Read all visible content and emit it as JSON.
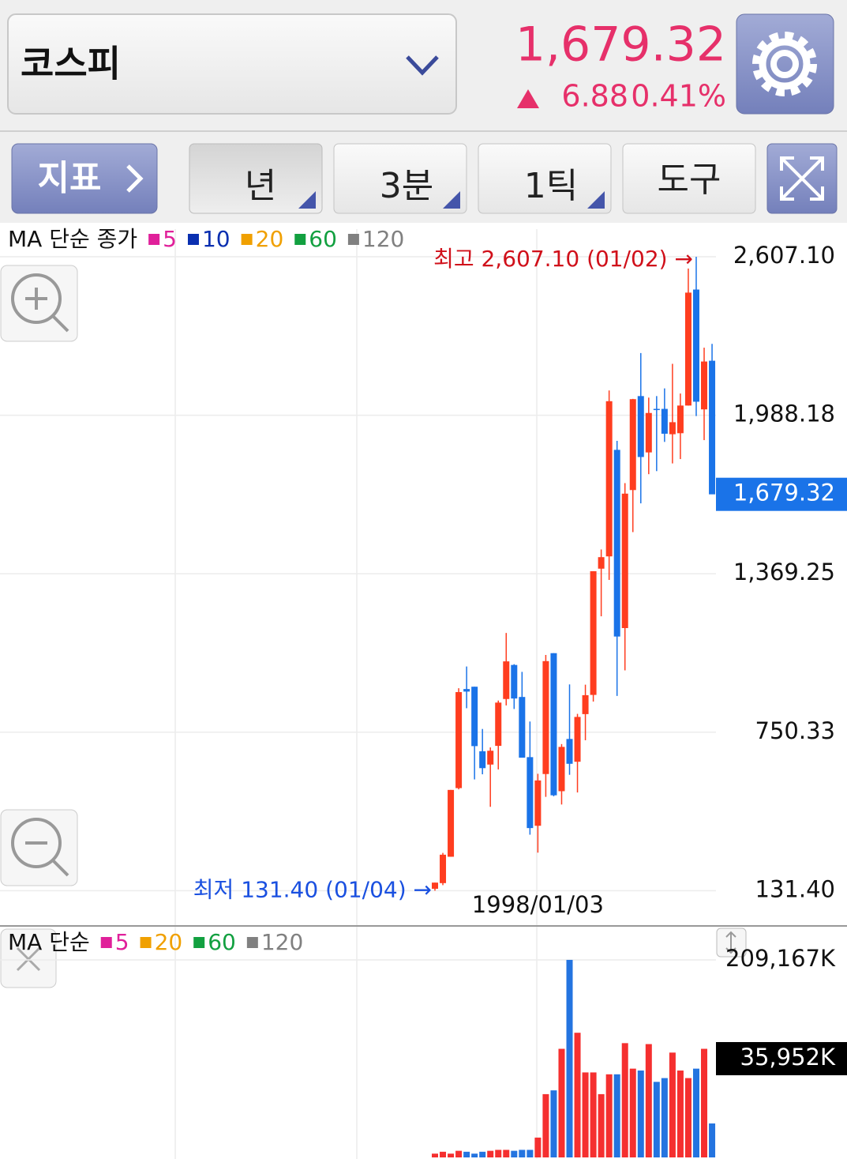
{
  "header": {
    "index_name": "코스피",
    "price": "1,679.32",
    "change": "6.88",
    "change_rate": "0.41%"
  },
  "toolbar": {
    "indicator": "지표",
    "period": "년",
    "minute": "3분",
    "tick": "1틱",
    "tools": "도구"
  },
  "chart_data": [
    {
      "type": "candlestick",
      "legend_title": "MA 단순 종가",
      "ma_legend": [
        {
          "name": "5",
          "color": "#e0209a"
        },
        {
          "name": "10",
          "color": "#0a2fb0"
        },
        {
          "name": "20",
          "color": "#f0a000"
        },
        {
          "name": "60",
          "color": "#12a040"
        },
        {
          "name": "120",
          "color": "#808080"
        }
      ],
      "categories": [
        null,
        null,
        null,
        null,
        null,
        null,
        null,
        null,
        null,
        null,
        null,
        null,
        null,
        "1998/01/03",
        null,
        null,
        null,
        null,
        null,
        null,
        null,
        null,
        null,
        null,
        null,
        null,
        null,
        null,
        null,
        null,
        null,
        null,
        null,
        null,
        null,
        null
      ],
      "open": [
        139,
        161,
        264,
        532,
        919,
        928,
        676,
        624,
        697,
        880,
        1013,
        888,
        653,
        385,
        587,
        1059,
        520,
        724,
        635,
        821,
        896,
        1389,
        1437,
        1853,
        1157,
        1696,
        2063,
        1843,
        2013,
        2013,
        1914,
        1918,
        2026,
        2479,
        2011,
        2201
      ],
      "high": [
        163,
        279,
        525,
        922,
        1007,
        928,
        763,
        691,
        874,
        1138,
        1016,
        986,
        792,
        588,
        1052,
        1059,
        704,
        937,
        822,
        936,
        1379,
        1464,
        2085,
        1888,
        1723,
        2052,
        2231,
        2057,
        2063,
        2093,
        2189,
        2073,
        2561,
        2607.1,
        2252,
        2267
      ],
      "low": [
        131.4,
        153,
        264,
        527,
        844,
        566,
        586,
        459,
        605,
        855,
        841,
        651,
        350,
        280,
        498,
        500,
        468,
        584,
        515,
        719,
        870,
        1203,
        1345,
        892,
        992,
        1532,
        1644,
        1758,
        1770,
        1884,
        1800,
        1817,
        2026,
        1985,
        1891,
        1680
      ],
      "close": [
        163,
        272,
        525,
        907,
        909,
        696,
        610,
        678,
        866,
        1027,
        882,
        651,
        376,
        562,
        1028,
        504,
        693,
        627,
        810,
        895,
        1379,
        1434,
        2043,
        1124,
        1682,
        2051,
        1825,
        1997,
        2011,
        1916,
        1961,
        2026,
        2467,
        2041,
        2198,
        1679.32
      ],
      "up_color": "#ff3d1f",
      "down_color": "#1a73e8",
      "ylim": [
        0,
        2715
      ],
      "yticks": [
        {
          "value": 131.4,
          "label": "131.40"
        },
        {
          "value": 750.33,
          "label": "750.33"
        },
        {
          "value": 1369.25,
          "label": "1,369.25"
        },
        {
          "value": 1988.18,
          "label": "1,988.18"
        },
        {
          "value": 2607.1,
          "label": "2,607.10"
        }
      ],
      "grid": true,
      "last_label": {
        "value": 1679.32,
        "label": "1,679.32"
      },
      "high_annotation": "최고 2,607.10 (01/02) →",
      "low_annotation": "최저 131.40 (01/04) →"
    },
    {
      "type": "bar",
      "legend_title": "MA 단순",
      "ma_legend": [
        {
          "name": "5",
          "color": "#e0209a"
        },
        {
          "name": "20",
          "color": "#f0a000"
        },
        {
          "name": "60",
          "color": "#12a040"
        },
        {
          "name": "120",
          "color": "#808080"
        }
      ],
      "values": [
        4000,
        6000,
        4000,
        7000,
        6000,
        4000,
        6000,
        7000,
        8000,
        8000,
        7000,
        8000,
        8000,
        21000,
        67000,
        71000,
        115000,
        209167,
        132000,
        90000,
        90000,
        67000,
        88000,
        88000,
        121000,
        94000,
        92000,
        120000,
        80000,
        84000,
        111000,
        92000,
        84000,
        94000,
        115000,
        35952
      ],
      "up_color": "#f52f2f",
      "down_color": "#2474e0",
      "ylim": [
        0,
        242600
      ],
      "yticks": [
        {
          "value": 209167,
          "label": "209,167K"
        }
      ],
      "last_label": {
        "value": 35952,
        "label": "35,952K"
      }
    }
  ]
}
